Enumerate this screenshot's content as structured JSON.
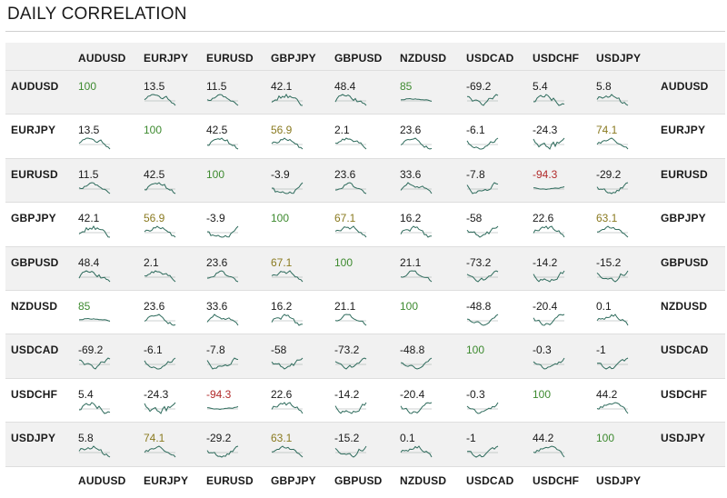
{
  "title": "DAILY CORRELATION",
  "colors": {
    "strong_positive": "#3d8a2f",
    "moderate_positive": "#8a7a20",
    "strong_negative": "#b22b2b",
    "neutral": "#1a1a1a",
    "sparkline": "#2e6b5c",
    "sparkline_baseline": "#9aa6a2",
    "row_shade": "#f1f1f1"
  },
  "chart_data": {
    "type": "table",
    "title": "DAILY CORRELATION",
    "columns": [
      "AUDUSD",
      "EURJPY",
      "EURUSD",
      "GBPJPY",
      "GBPUSD",
      "NZDUSD",
      "USDCAD",
      "USDCHF",
      "USDJPY"
    ],
    "rows": [
      "AUDUSD",
      "EURJPY",
      "EURUSD",
      "GBPJPY",
      "GBPUSD",
      "NZDUSD",
      "USDCAD",
      "USDCHF",
      "USDJPY"
    ],
    "values": [
      [
        "100",
        "13.5",
        "11.5",
        "42.1",
        "48.4",
        "85",
        "-69.2",
        "5.4",
        "5.8"
      ],
      [
        "13.5",
        "100",
        "42.5",
        "56.9",
        "2.1",
        "23.6",
        "-6.1",
        "-24.3",
        "74.1"
      ],
      [
        "11.5",
        "42.5",
        "100",
        "-3.9",
        "23.6",
        "33.6",
        "-7.8",
        "-94.3",
        "-29.2"
      ],
      [
        "42.1",
        "56.9",
        "-3.9",
        "100",
        "67.1",
        "16.2",
        "-58",
        "22.6",
        "63.1"
      ],
      [
        "48.4",
        "2.1",
        "23.6",
        "67.1",
        "100",
        "21.1",
        "-73.2",
        "-14.2",
        "-15.2"
      ],
      [
        "85",
        "23.6",
        "33.6",
        "16.2",
        "21.1",
        "100",
        "-48.8",
        "-20.4",
        "0.1"
      ],
      [
        "-69.2",
        "-6.1",
        "-7.8",
        "-58",
        "-73.2",
        "-48.8",
        "100",
        "-0.3",
        "-1"
      ],
      [
        "5.4",
        "-24.3",
        "-94.3",
        "22.6",
        "-14.2",
        "-20.4",
        "-0.3",
        "100",
        "44.2"
      ],
      [
        "5.8",
        "74.1",
        "-29.2",
        "63.1",
        "-15.2",
        "0.1",
        "-1",
        "44.2",
        "100"
      ]
    ]
  }
}
